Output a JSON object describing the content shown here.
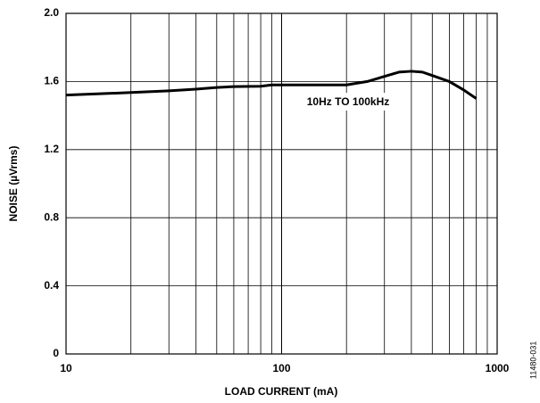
{
  "chart_data": {
    "type": "line",
    "x_label": "LOAD CURRENT (mA)",
    "y_label": "NOISE (µVrms)",
    "annotation": "10Hz TO 100kHz",
    "side_note": "11480-031",
    "xscale": "log",
    "xlim": [
      10,
      1000
    ],
    "xticks": [
      10,
      100,
      1000
    ],
    "x_minor_ticks": [
      20,
      30,
      40,
      50,
      60,
      70,
      80,
      90,
      200,
      300,
      400,
      500,
      600,
      700,
      800,
      900
    ],
    "ylim": [
      0,
      2
    ],
    "yticks": [
      0,
      0.4,
      0.8,
      1.2,
      1.6,
      {
        "value": 2,
        "label": "2.0"
      }
    ],
    "grid": true,
    "series": [
      {
        "color": "#000000",
        "x": [
          10,
          20,
          30,
          40,
          50,
          60,
          80,
          90,
          100,
          200,
          250,
          300,
          350,
          400,
          450,
          500,
          600,
          700,
          800
        ],
        "values": [
          1.52,
          1.535,
          1.545,
          1.555,
          1.565,
          1.57,
          1.572,
          1.58,
          1.58,
          1.58,
          1.6,
          1.63,
          1.655,
          1.66,
          1.655,
          1.635,
          1.6,
          1.55,
          1.5
        ]
      }
    ]
  }
}
